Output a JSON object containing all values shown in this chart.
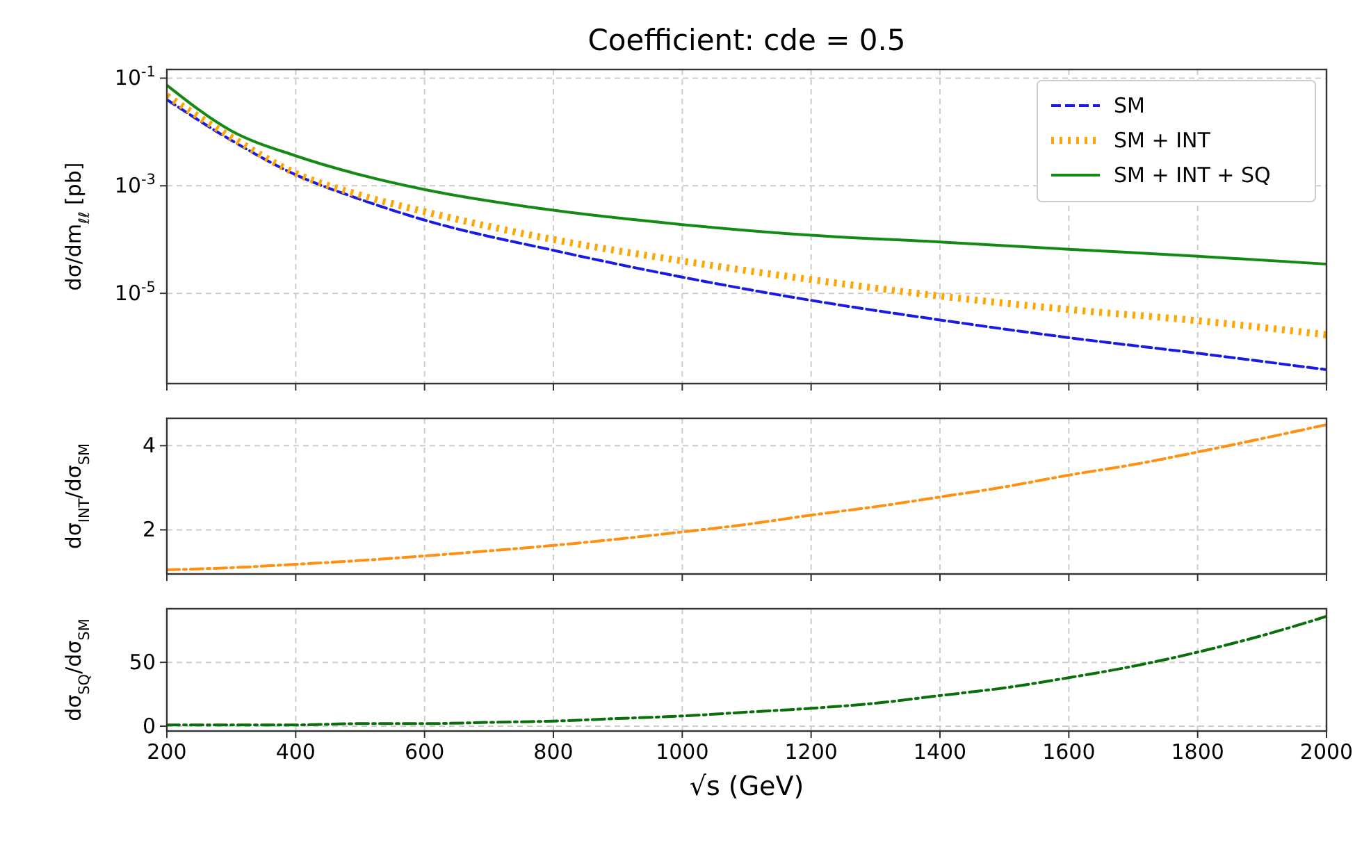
{
  "chart_data": [
    {
      "type": "line",
      "title": "Coefficient: cde = 0.5",
      "ylabel": "dσ/dm$_{ℓℓ}$ [pb]",
      "log": "y",
      "grid": true,
      "legend": "top right",
      "tick_labels": "y",
      "x": [
        200,
        300,
        400,
        500,
        600,
        800,
        1000,
        1200,
        1400,
        1600,
        1800,
        2000
      ],
      "xlim": [
        200,
        2000
      ],
      "xticks": [
        {
          "value": 200,
          "label": null
        },
        {
          "value": 400,
          "label": null
        },
        {
          "value": 600,
          "label": null
        },
        {
          "value": 800,
          "label": null
        },
        {
          "value": 1000,
          "label": null
        },
        {
          "value": 1200,
          "label": null
        },
        {
          "value": 1400,
          "label": null
        },
        {
          "value": 1600,
          "label": null
        },
        {
          "value": 1800,
          "label": null
        },
        {
          "value": 2000,
          "label": null
        }
      ],
      "ylim": [
        2.1e-07,
        0.145
      ],
      "yticks": [
        {
          "value": 0.1,
          "label": "10$^{-1}$"
        },
        {
          "value": 0.001,
          "label": "10$^{-3}$"
        },
        {
          "value": 1e-05,
          "label": "10$^{-5}$"
        }
      ],
      "series": [
        {
          "name": "SM",
          "color": "#1a1ae6",
          "line_style": "dashed",
          "values": [
            0.04,
            0.007,
            0.0016,
            0.00056,
            0.00023,
            6.3e-05,
            2e-05,
            7.4e-06,
            3.2e-06,
            1.5e-06,
            7.7e-07,
            3.8e-07
          ]
        },
        {
          "name": "SM + INT",
          "color": "#ffa500",
          "line_style": "dotted",
          "values": [
            0.047,
            0.008,
            0.0017,
            0.00067,
            0.00033,
            0.0001,
            4e-05,
            1.8e-05,
            8.9e-06,
            5e-06,
            3.1e-06,
            1.7e-06
          ]
        },
        {
          "name": "SM + INT + SQ",
          "color": "#138a13",
          "line_style": "solid",
          "values": [
            0.074,
            0.0105,
            0.0036,
            0.0016,
            0.00085,
            0.00035,
            0.00019,
            0.00012,
            9e-05,
            6.6e-05,
            4.9e-05,
            3.5e-05
          ]
        }
      ]
    },
    {
      "type": "line",
      "ylabel": "dσ$_{INT}$/dσ$_{SM}$",
      "grid": true,
      "tick_labels": "y",
      "x": [
        200,
        300,
        400,
        500,
        600,
        700,
        800,
        900,
        1000,
        1100,
        1200,
        1300,
        1400,
        1500,
        1600,
        1700,
        1800,
        1900,
        2000
      ],
      "xlim": [
        200,
        2000
      ],
      "xticks": [
        {
          "value": 200,
          "label": null
        },
        {
          "value": 400,
          "label": null
        },
        {
          "value": 600,
          "label": null
        },
        {
          "value": 800,
          "label": null
        },
        {
          "value": 1000,
          "label": null
        },
        {
          "value": 1200,
          "label": null
        },
        {
          "value": 1400,
          "label": null
        },
        {
          "value": 1600,
          "label": null
        },
        {
          "value": 1800,
          "label": null
        },
        {
          "value": 2000,
          "label": null
        }
      ],
      "ylim": [
        0.95,
        4.65
      ],
      "yticks": [
        2,
        4
      ],
      "series": [
        {
          "color": "#ff9010",
          "line_style": "dashdot",
          "values": [
            1.05,
            1.1,
            1.18,
            1.27,
            1.38,
            1.5,
            1.63,
            1.78,
            1.95,
            2.13,
            2.35,
            2.55,
            2.78,
            3.02,
            3.3,
            3.55,
            3.85,
            4.17,
            4.5
          ]
        }
      ]
    },
    {
      "type": "line",
      "ylabel": "dσ$_{SQ}$/dσ$_{SM}$",
      "xlabel": "√s (GeV)",
      "grid": true,
      "x": [
        200,
        300,
        400,
        500,
        600,
        700,
        800,
        900,
        1000,
        1100,
        1200,
        1300,
        1400,
        1500,
        1600,
        1700,
        1800,
        1900,
        2000
      ],
      "xlim": [
        200,
        2000
      ],
      "xticks": [
        200,
        400,
        600,
        800,
        1000,
        1200,
        1400,
        1600,
        1800,
        2000
      ],
      "ylim": [
        -3.8,
        92
      ],
      "yticks": [
        0,
        50
      ],
      "series": [
        {
          "color": "#0a6e0a",
          "line_style": "dashdot",
          "values": [
            1,
            1,
            1,
            2,
            2,
            3,
            4,
            6,
            8,
            11,
            14,
            18,
            24,
            30,
            38,
            47,
            58,
            71,
            86
          ]
        }
      ]
    }
  ]
}
